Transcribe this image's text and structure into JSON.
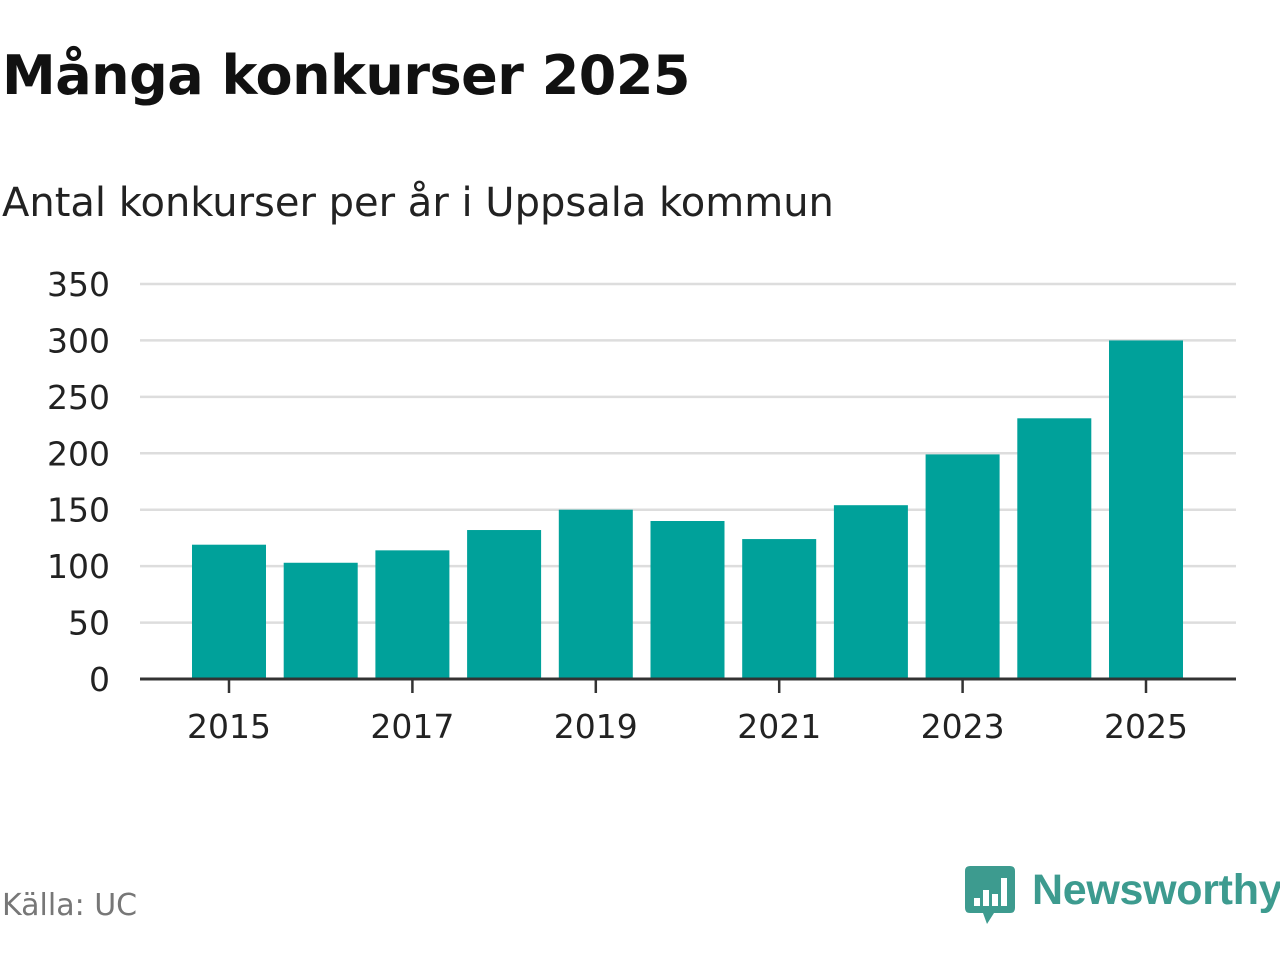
{
  "chart_data": {
    "type": "bar",
    "title": "Många konkurser 2025",
    "subtitle": "Antal konkurser per år i Uppsala kommun",
    "categories": [
      "2015",
      "2016",
      "2017",
      "2018",
      "2019",
      "2020",
      "2021",
      "2022",
      "2023",
      "2024",
      "2025"
    ],
    "values": [
      119,
      103,
      114,
      132,
      150,
      140,
      124,
      154,
      199,
      231,
      300
    ],
    "x_tick_labels": [
      "2015",
      "2017",
      "2019",
      "2021",
      "2023",
      "2025"
    ],
    "y_ticks": [
      0,
      50,
      100,
      150,
      200,
      250,
      300,
      350
    ],
    "ylim": [
      0,
      350
    ],
    "xlabel": "",
    "ylabel": "",
    "grid": true,
    "bar_color": "#00a19a"
  },
  "footer": {
    "source": "Källa: UC",
    "brand": "Newsworthy",
    "brand_icon": "newsworthy-logo-icon"
  },
  "colors": {
    "bar": "#00a19a",
    "grid": "#dddddd",
    "axis": "#333333",
    "brand": "#3d9b8f"
  }
}
